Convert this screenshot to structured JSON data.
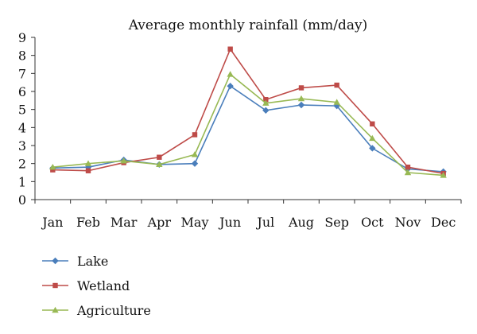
{
  "chart_data": {
    "type": "line",
    "title": "Average monthly rainfall (mm/day)",
    "xlabel": "",
    "ylabel": "",
    "categories": [
      "Jan",
      "Feb",
      "Mar",
      "Apr",
      "May",
      "Jun",
      "Jul",
      "Aug",
      "Sep",
      "Oct",
      "Nov",
      "Dec"
    ],
    "ylim": [
      0,
      9
    ],
    "yticks": [
      "0",
      "1",
      "2",
      "3",
      "4",
      "5",
      "6",
      "7",
      "8",
      "9"
    ],
    "grid": false,
    "legend_position": "bottom-left",
    "series": [
      {
        "name": "Lake",
        "color": "#4a7ebb",
        "marker": "diamond",
        "values": [
          1.75,
          1.8,
          2.2,
          1.95,
          2.0,
          6.3,
          4.95,
          5.25,
          5.2,
          2.85,
          1.7,
          1.55
        ]
      },
      {
        "name": "Wetland",
        "color": "#be4b48",
        "marker": "square",
        "values": [
          1.65,
          1.6,
          2.05,
          2.35,
          3.6,
          8.35,
          5.55,
          6.2,
          6.35,
          4.2,
          1.8,
          1.45
        ]
      },
      {
        "name": "Agriculture",
        "color": "#98b954",
        "marker": "triangle",
        "values": [
          1.8,
          2.0,
          2.15,
          1.95,
          2.5,
          6.95,
          5.35,
          5.6,
          5.4,
          3.4,
          1.5,
          1.35
        ]
      }
    ]
  }
}
